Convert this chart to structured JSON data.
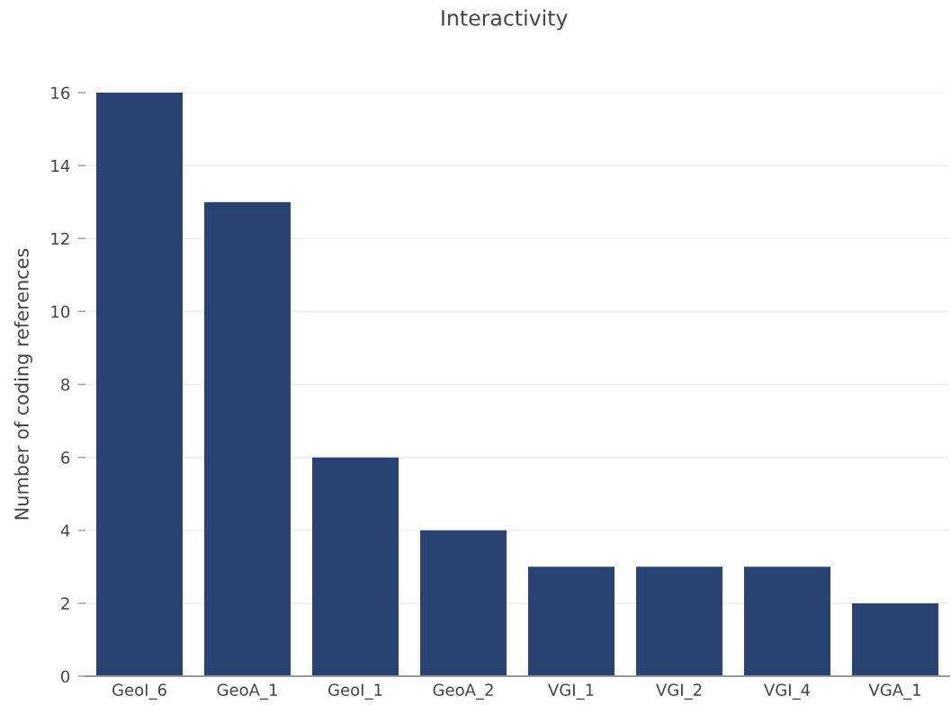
{
  "chart_data": {
    "type": "bar",
    "title": "Interactivity",
    "ylabel": "Number of coding references",
    "categories": [
      "GeoI_6",
      "GeoA_1",
      "GeoI_1",
      "GeoA_2",
      "VGI_1",
      "VGI_2",
      "VGI_4",
      "VGA_1"
    ],
    "values": [
      16,
      13,
      6,
      4,
      3,
      3,
      3,
      2
    ],
    "color": "#2a4272",
    "ylim": [
      0,
      16
    ],
    "yticks": [
      0,
      2,
      4,
      6,
      8,
      10,
      12,
      14,
      16
    ],
    "grid": "y",
    "legend": false
  }
}
